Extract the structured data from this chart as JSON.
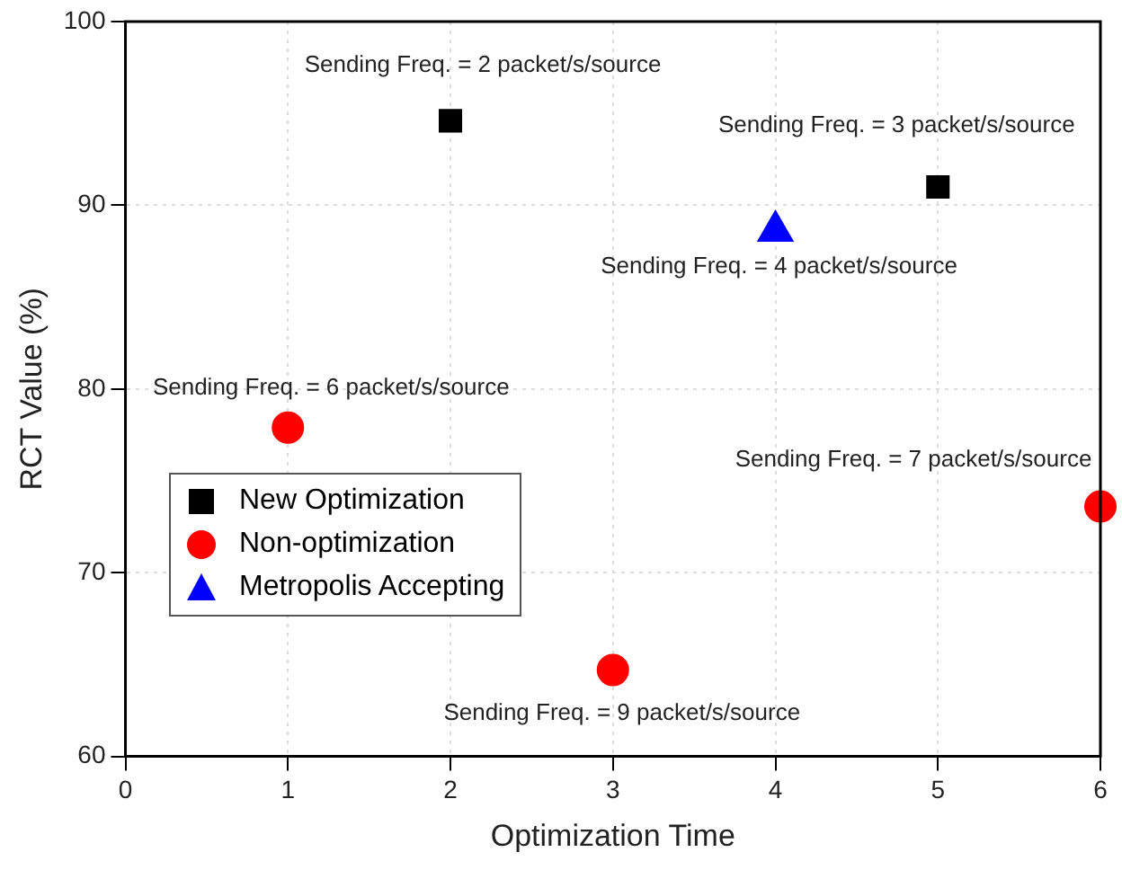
{
  "chart_data": {
    "type": "scatter",
    "xlabel": "Optimization Time",
    "ylabel": "RCT Value (%)",
    "xlim": [
      0,
      6
    ],
    "xticks": [
      0,
      1,
      2,
      3,
      4,
      5,
      6
    ],
    "ylim": [
      60,
      100
    ],
    "yticks": [
      60,
      70,
      80,
      90,
      100
    ],
    "grid": true,
    "legend": "center left",
    "series": [
      {
        "name": "New Optimization",
        "color": "#000000",
        "marker": "square",
        "x": [
          2,
          5
        ],
        "values": [
          94.6,
          91.0
        ]
      },
      {
        "name": "Non-optimization",
        "color": "#ff0000",
        "marker": "circle",
        "x": [
          1,
          6,
          3
        ],
        "values": [
          77.9,
          73.6,
          64.7
        ]
      },
      {
        "name": "Metropolis Accepting",
        "color": "#0000ff",
        "marker": "triangle",
        "x": [
          4
        ],
        "values": [
          88.6
        ]
      }
    ],
    "annotations": [
      {
        "text": "Sending Freq. = 2 packet/s/source",
        "x": 2,
        "y": 94.6
      },
      {
        "text": "Sending Freq. = 3 packet/s/source",
        "x": 5,
        "y": 91.0
      },
      {
        "text": "Sending Freq. = 4 packet/s/source",
        "x": 4,
        "y": 88.6
      },
      {
        "text": "Sending Freq. = 6 packet/s/source",
        "x": 1,
        "y": 77.9
      },
      {
        "text": "Sending Freq. = 7 packet/s/source",
        "x": 6,
        "y": 73.6
      },
      {
        "text": "Sending Freq. = 9 packet/s/source",
        "x": 3,
        "y": 64.7
      }
    ]
  }
}
